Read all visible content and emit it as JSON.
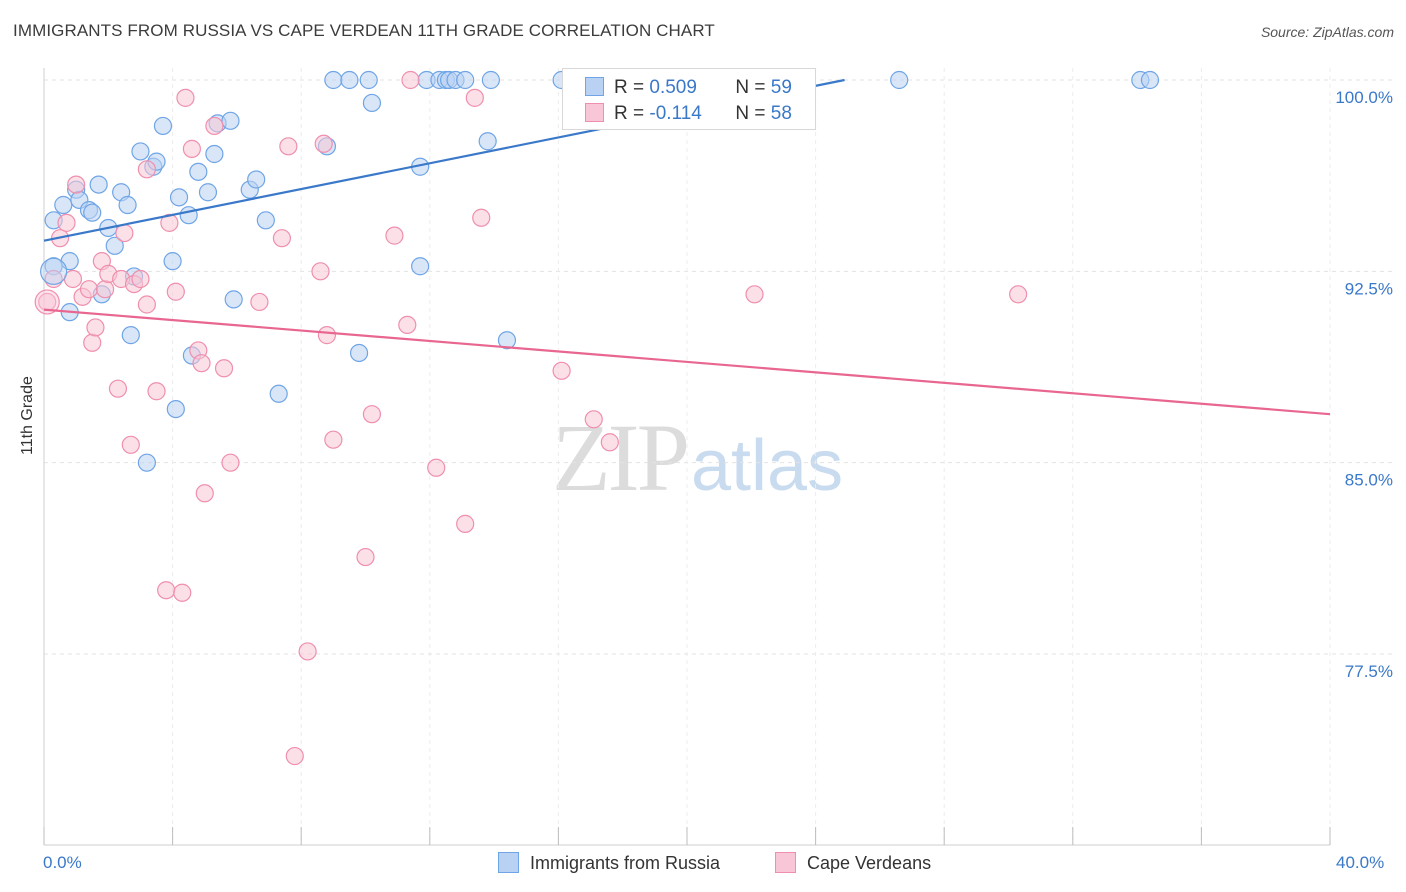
{
  "header": {
    "title": "IMMIGRANTS FROM RUSSIA VS CAPE VERDEAN 11TH GRADE CORRELATION CHART",
    "source": "Source: ZipAtlas.com"
  },
  "watermark": {
    "zip": "ZIP",
    "atlas": "atlas"
  },
  "legend": {
    "r_label": "R =",
    "n_label": "N =",
    "rows": [
      {
        "r": "0.509",
        "n": "59",
        "color": "#6fa5e6",
        "fill": "#b9d2f3"
      },
      {
        "r": "-0.114",
        "n": "58",
        "color": "#ef8fae",
        "fill": "#f8c6d6"
      }
    ]
  },
  "bottom_legend": [
    {
      "label": "Immigrants from Russia",
      "color": "#6fa5e6",
      "fill": "#b9d2f3"
    },
    {
      "label": "Cape Verdeans",
      "color": "#ef8fae",
      "fill": "#f8c6d6"
    }
  ],
  "chart_data": {
    "type": "scatter",
    "title": "IMMIGRANTS FROM RUSSIA VS CAPE VERDEAN 11TH GRADE CORRELATION CHART",
    "xlabel": "",
    "ylabel": "11th Grade",
    "xlim": [
      0.0,
      40.0
    ],
    "ylim": [
      72.0,
      100.6
    ],
    "x_tick_labels": [
      "0.0%",
      "40.0%"
    ],
    "y_tick_labels": [
      {
        "value": 100.0,
        "label": "100.0%"
      },
      {
        "value": 92.5,
        "label": "92.5%"
      },
      {
        "value": 85.0,
        "label": "85.0%"
      },
      {
        "value": 77.5,
        "label": "77.5%"
      }
    ],
    "grid": true,
    "legend_position": "top-center",
    "series": [
      {
        "name": "Immigrants from Russia",
        "color": "#3a78c9",
        "marker_fill": "#b9d2f3",
        "marker_stroke": "#6fa5e6",
        "trend": {
          "x": [
            0.0,
            24.9
          ],
          "y": [
            93.7,
            100.0
          ]
        },
        "points": [
          [
            0.3,
            94.5
          ],
          [
            0.3,
            92.7
          ],
          [
            0.6,
            95.1
          ],
          [
            0.8,
            92.9
          ],
          [
            0.8,
            90.9
          ],
          [
            1.0,
            95.7
          ],
          [
            1.1,
            95.3
          ],
          [
            1.4,
            94.9
          ],
          [
            1.5,
            94.8
          ],
          [
            1.7,
            95.9
          ],
          [
            1.8,
            91.6
          ],
          [
            2.0,
            94.2
          ],
          [
            2.2,
            93.5
          ],
          [
            2.4,
            95.6
          ],
          [
            2.6,
            95.1
          ],
          [
            2.7,
            90.0
          ],
          [
            2.8,
            92.3
          ],
          [
            3.0,
            97.2
          ],
          [
            3.2,
            85.0
          ],
          [
            3.4,
            96.6
          ],
          [
            3.5,
            96.8
          ],
          [
            3.7,
            98.2
          ],
          [
            4.0,
            92.9
          ],
          [
            4.1,
            87.1
          ],
          [
            4.2,
            95.4
          ],
          [
            4.5,
            94.7
          ],
          [
            4.6,
            89.2
          ],
          [
            4.8,
            96.4
          ],
          [
            5.1,
            95.6
          ],
          [
            5.3,
            97.1
          ],
          [
            5.4,
            98.3
          ],
          [
            5.8,
            98.4
          ],
          [
            5.9,
            91.4
          ],
          [
            6.4,
            95.7
          ],
          [
            6.6,
            96.1
          ],
          [
            6.9,
            94.5
          ],
          [
            7.3,
            87.7
          ],
          [
            8.8,
            97.4
          ],
          [
            9.0,
            100.0
          ],
          [
            9.5,
            100.0
          ],
          [
            9.8,
            89.3
          ],
          [
            10.1,
            100.0
          ],
          [
            10.2,
            99.1
          ],
          [
            11.7,
            96.6
          ],
          [
            11.7,
            92.7
          ],
          [
            11.9,
            100.0
          ],
          [
            12.3,
            100.0
          ],
          [
            12.5,
            100.0
          ],
          [
            12.6,
            100.0
          ],
          [
            12.8,
            100.0
          ],
          [
            13.1,
            100.0
          ],
          [
            13.8,
            97.6
          ],
          [
            13.9,
            100.0
          ],
          [
            14.4,
            89.8
          ],
          [
            16.1,
            100.0
          ],
          [
            17.9,
            100.0
          ],
          [
            26.6,
            100.0
          ],
          [
            34.1,
            100.0
          ],
          [
            34.4,
            100.0
          ]
        ]
      },
      {
        "name": "Cape Verdeans",
        "color": "#e8668f",
        "marker_fill": "#f8c6d6",
        "marker_stroke": "#ef8fae",
        "trend": {
          "x": [
            0.0,
            40.0
          ],
          "y": [
            91.0,
            86.9
          ]
        },
        "points": [
          [
            0.1,
            91.3
          ],
          [
            0.3,
            92.2
          ],
          [
            0.5,
            93.8
          ],
          [
            0.7,
            94.4
          ],
          [
            0.9,
            92.2
          ],
          [
            1.0,
            95.9
          ],
          [
            1.2,
            91.5
          ],
          [
            1.4,
            91.8
          ],
          [
            1.5,
            89.7
          ],
          [
            1.6,
            90.3
          ],
          [
            1.8,
            92.9
          ],
          [
            1.9,
            91.8
          ],
          [
            2.0,
            92.4
          ],
          [
            2.3,
            87.9
          ],
          [
            2.4,
            92.2
          ],
          [
            2.5,
            94.0
          ],
          [
            2.7,
            85.7
          ],
          [
            2.8,
            92.0
          ],
          [
            3.0,
            92.2
          ],
          [
            3.2,
            91.2
          ],
          [
            3.2,
            96.5
          ],
          [
            3.5,
            87.8
          ],
          [
            3.8,
            80.0
          ],
          [
            3.9,
            94.4
          ],
          [
            4.1,
            91.7
          ],
          [
            4.3,
            79.9
          ],
          [
            4.4,
            99.3
          ],
          [
            4.6,
            97.3
          ],
          [
            4.8,
            89.4
          ],
          [
            4.9,
            88.9
          ],
          [
            5.0,
            83.8
          ],
          [
            5.3,
            98.2
          ],
          [
            5.6,
            88.7
          ],
          [
            5.8,
            85.0
          ],
          [
            6.7,
            91.3
          ],
          [
            7.4,
            93.8
          ],
          [
            7.6,
            97.4
          ],
          [
            8.2,
            77.6
          ],
          [
            7.8,
            73.5
          ],
          [
            8.7,
            97.5
          ],
          [
            8.6,
            92.5
          ],
          [
            8.8,
            90.0
          ],
          [
            9.0,
            85.9
          ],
          [
            10.0,
            81.3
          ],
          [
            10.2,
            86.9
          ],
          [
            10.9,
            93.9
          ],
          [
            11.3,
            90.4
          ],
          [
            11.4,
            100.0
          ],
          [
            12.2,
            84.8
          ],
          [
            13.1,
            82.6
          ],
          [
            13.4,
            99.3
          ],
          [
            13.6,
            94.6
          ],
          [
            16.1,
            88.6
          ],
          [
            17.1,
            86.7
          ],
          [
            17.6,
            85.8
          ],
          [
            19.1,
            100.0
          ],
          [
            22.1,
            91.6
          ],
          [
            30.3,
            91.6
          ]
        ]
      }
    ]
  }
}
